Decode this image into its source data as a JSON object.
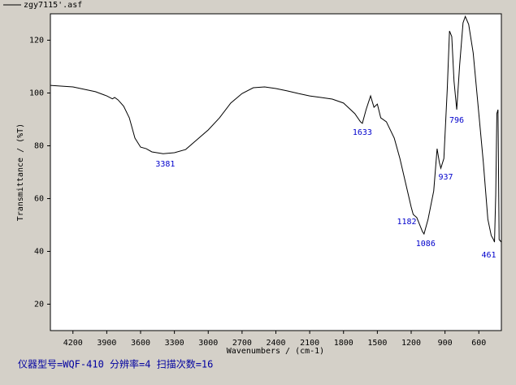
{
  "chart_data": {
    "type": "line",
    "xlabel": "Wavenumbers / (cm-1)",
    "ylabel": "Transmittance / (%T)",
    "note": "仪器型号=WQF-410 分辨率=4 扫描次数=16",
    "xlim": [
      4400,
      400
    ],
    "ylim": [
      10,
      130
    ],
    "xticks": [
      4200,
      3900,
      3600,
      3300,
      3000,
      2700,
      2400,
      2100,
      1800,
      1500,
      1200,
      900,
      600
    ],
    "yticks": [
      20,
      40,
      60,
      80,
      100,
      120
    ],
    "series": [
      {
        "name": "zgy7115'.asf",
        "color": "#000000",
        "x": [
          4400,
          4200,
          4000,
          3900,
          3850,
          3830,
          3800,
          3750,
          3700,
          3650,
          3600,
          3550,
          3500,
          3400,
          3300,
          3200,
          3100,
          3000,
          2900,
          2800,
          2700,
          2600,
          2500,
          2400,
          2300,
          2200,
          2100,
          2000,
          1900,
          1800,
          1700,
          1650,
          1633,
          1600,
          1560,
          1530,
          1500,
          1470,
          1420,
          1350,
          1300,
          1250,
          1200,
          1182,
          1150,
          1100,
          1086,
          1050,
          1000,
          970,
          950,
          937,
          910,
          880,
          860,
          840,
          820,
          796,
          770,
          740,
          720,
          690,
          650,
          600,
          560,
          520,
          490,
          470,
          461,
          450,
          440,
          430,
          420,
          400
        ],
        "values": [
          102.9,
          102.3,
          100.5,
          98.9,
          97.8,
          98.3,
          97.4,
          95,
          90.6,
          82.9,
          79.5,
          78.9,
          77.7,
          77,
          77.4,
          78.6,
          82.3,
          86,
          90.6,
          96.2,
          99.8,
          102,
          102.3,
          101.7,
          100.8,
          99.8,
          98.9,
          98.3,
          97.7,
          96.2,
          92.2,
          89.1,
          88.5,
          93.7,
          98.9,
          94.6,
          95.8,
          90.6,
          89.1,
          82.9,
          75.2,
          66,
          56.8,
          54,
          52.8,
          47.5,
          46.6,
          52.2,
          62.9,
          78.9,
          73.7,
          71.5,
          75.2,
          101.4,
          123.5,
          121.4,
          104.5,
          93.7,
          110.6,
          126.6,
          129,
          126,
          115.2,
          92.2,
          73.7,
          52.2,
          46,
          44.5,
          43.5,
          61.4,
          92.2,
          93.7,
          44.5,
          43.5
        ]
      }
    ],
    "peaks": [
      {
        "x": 3381
      },
      {
        "x": 1633
      },
      {
        "x": 1182
      },
      {
        "x": 1086
      },
      {
        "x": 937
      },
      {
        "x": 796
      },
      {
        "x": 461
      }
    ],
    "peak_color": "#0000cc",
    "note_color": "#0000a0"
  }
}
